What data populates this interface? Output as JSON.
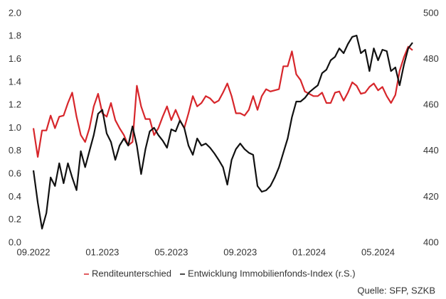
{
  "chart_data": {
    "type": "line",
    "x": [
      0,
      0.25,
      0.5,
      0.75,
      1,
      1.25,
      1.5,
      1.75,
      2,
      2.25,
      2.5,
      2.75,
      3,
      3.25,
      3.5,
      3.75,
      4,
      4.25,
      4.5,
      4.75,
      5,
      5.25,
      5.5,
      5.75,
      6,
      6.25,
      6.5,
      6.75,
      7,
      7.25,
      7.5,
      7.75,
      8,
      8.25,
      8.5,
      8.75,
      9,
      9.25,
      9.5,
      9.75,
      10,
      10.25,
      10.5,
      10.75,
      11,
      11.25,
      11.5,
      11.75,
      12,
      12.25,
      12.5,
      12.75,
      13,
      13.25,
      13.5,
      13.75,
      14,
      14.25,
      14.5,
      14.75,
      15,
      15.25,
      15.5,
      15.75,
      16,
      16.25,
      16.5,
      16.75,
      17,
      17.25,
      17.5,
      17.75,
      18,
      18.25,
      18.5,
      18.75,
      19,
      19.25,
      19.5,
      19.75,
      20,
      20.25,
      20.5,
      20.75,
      21,
      21.25,
      21.5,
      21.75,
      22
    ],
    "series": [
      {
        "name": "Renditeunterschied",
        "color": "#d7262b",
        "values": [
          1.0,
          0.75,
          0.98,
          0.98,
          1.11,
          1.0,
          1.1,
          1.11,
          1.22,
          1.31,
          1.1,
          0.94,
          0.88,
          1.0,
          1.19,
          1.3,
          1.13,
          1.1,
          1.22,
          1.07,
          1.0,
          0.94,
          0.85,
          0.88,
          1.37,
          1.19,
          1.08,
          1.08,
          0.94,
          1.0,
          1.1,
          1.19,
          1.07,
          1.16,
          1.07,
          1.0,
          1.13,
          1.28,
          1.19,
          1.22,
          1.28,
          1.26,
          1.22,
          1.24,
          1.31,
          1.39,
          1.28,
          1.13,
          1.13,
          1.11,
          1.16,
          1.28,
          1.16,
          1.28,
          1.34,
          1.32,
          1.33,
          1.34,
          1.54,
          1.54,
          1.67,
          1.47,
          1.42,
          1.32,
          1.3,
          1.28,
          1.28,
          1.31,
          1.22,
          1.22,
          1.31,
          1.32,
          1.24,
          1.31,
          1.4,
          1.37,
          1.3,
          1.31,
          1.36,
          1.39,
          1.33,
          1.36,
          1.28,
          1.22,
          1.29,
          1.5,
          1.62,
          1.71,
          1.68
        ]
      },
      {
        "name": "Entwicklung Immobilienfonds-Index (r.S.)",
        "color": "#111111",
        "axis": "y2",
        "values": [
          431.6,
          417.6,
          406.2,
          413,
          428.5,
          424.8,
          434.7,
          426,
          434.7,
          428.5,
          423,
          440,
          433,
          440,
          447,
          456.3,
          458,
          447.7,
          444,
          436.2,
          442.4,
          445.5,
          442.4,
          450.8,
          442.4,
          430,
          440.9,
          448.6,
          450.2,
          447,
          444.6,
          441.5,
          449.5,
          448.6,
          453.3,
          450.2,
          442.4,
          438.4,
          445.5,
          442.4,
          443.3,
          441.5,
          439,
          436.2,
          433,
          425.4,
          436.2,
          440.9,
          443.3,
          440.9,
          439.3,
          438.4,
          424.8,
          422.3,
          422.9,
          424.8,
          428.5,
          433,
          439.3,
          445.5,
          454.8,
          461.6,
          461.6,
          463.2,
          465.6,
          467.2,
          468.7,
          474,
          475.5,
          479.6,
          481.1,
          484.8,
          482.7,
          486.7,
          489.8,
          490.4,
          482.7,
          484.2,
          474.9,
          484.8,
          479.6,
          484.2,
          483.6,
          474.9,
          476.5,
          468.7,
          477.7,
          484.8,
          487.3
        ]
      }
    ],
    "xlim": [
      0,
      22
    ],
    "xticks": [
      {
        "value": 0,
        "label": "09.2022"
      },
      {
        "value": 4,
        "label": "01.2023"
      },
      {
        "value": 8,
        "label": "05.2023"
      },
      {
        "value": 12,
        "label": "09.2023"
      },
      {
        "value": 16,
        "label": "01.2024"
      },
      {
        "value": 20,
        "label": "05.2024"
      }
    ],
    "ylim": [
      0,
      2
    ],
    "yticks": [
      {
        "value": 0,
        "label": "0.0"
      },
      {
        "value": 0.2,
        "label": "0.2"
      },
      {
        "value": 0.4,
        "label": "0.4"
      },
      {
        "value": 0.6,
        "label": "0.6"
      },
      {
        "value": 0.8,
        "label": "0.8"
      },
      {
        "value": 1,
        "label": "1.0"
      },
      {
        "value": 1.2,
        "label": "1.2"
      },
      {
        "value": 1.4,
        "label": "1.4"
      },
      {
        "value": 1.6,
        "label": "1.6"
      },
      {
        "value": 1.8,
        "label": "1.8"
      },
      {
        "value": 2,
        "label": "2.0"
      }
    ],
    "y2lim": [
      400,
      500
    ],
    "y2ticks": [
      400,
      420,
      440,
      460,
      480,
      500
    ],
    "grid": false,
    "legend": "bottom",
    "source": "Quelle: SFP, SZKB"
  }
}
